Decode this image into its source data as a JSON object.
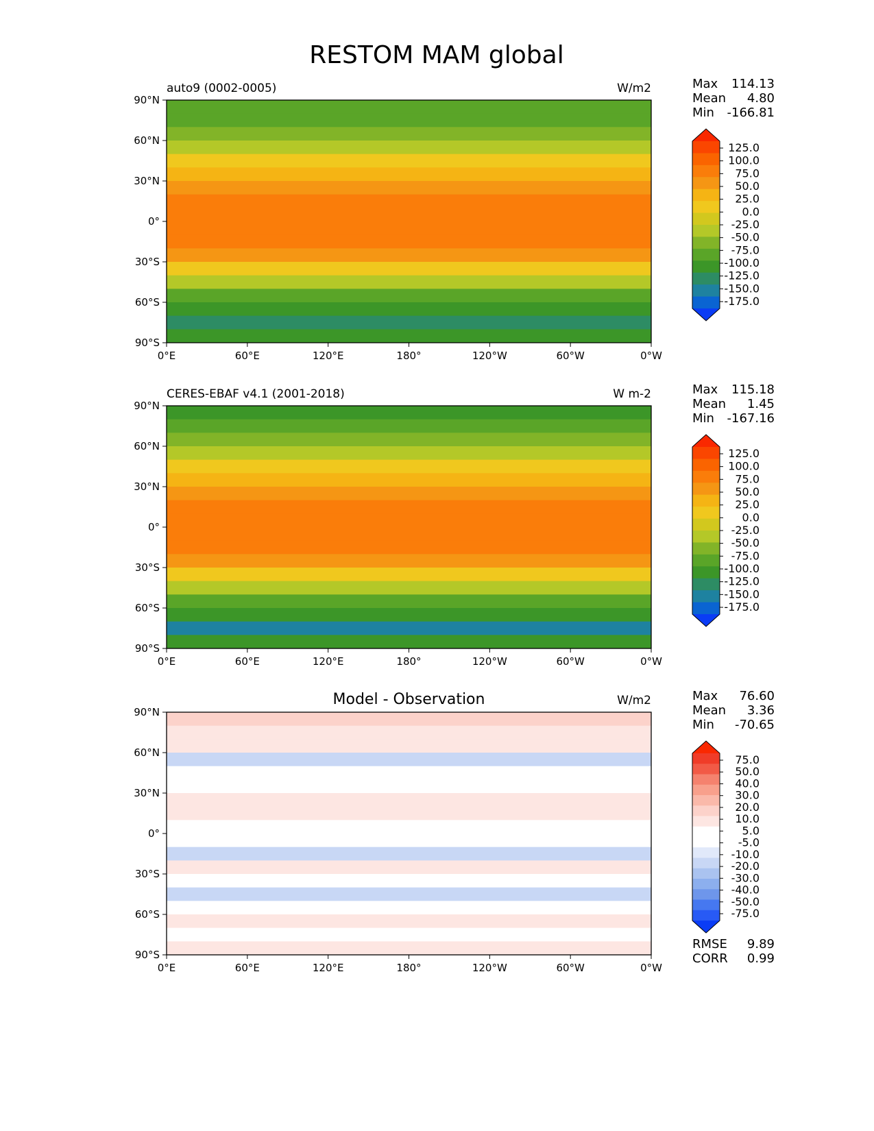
{
  "figure": {
    "title": "RESTOM MAM global"
  },
  "colors": {
    "main_scale": [
      "#0a3cf5",
      "#0a64d2",
      "#1e82a0",
      "#2d8c64",
      "#3c9628",
      "#5aa528",
      "#82b428",
      "#b4c828",
      "#d2c81e",
      "#f0c81e",
      "#f5b414",
      "#f59614",
      "#fa7d0a",
      "#fa6400",
      "#fa4600",
      "#fa2800"
    ],
    "diff_scale": [
      "#0a3cf5",
      "#285af5",
      "#4678f0",
      "#6e96eb",
      "#8cafee",
      "#aac3f0",
      "#c8d7f5",
      "#e1e9fa",
      "#ffffff",
      "#ffffff",
      "#fde6e2",
      "#fcd2ca",
      "#fab9aa",
      "#f8a08c",
      "#f5826e",
      "#f25a46",
      "#f03c28",
      "#fa2800"
    ]
  },
  "chart_data": [
    {
      "type": "heatmap",
      "title": "auto9 (0002-0005)",
      "units": "W/m2",
      "stats": [
        {
          "label": "Max",
          "value": "114.13"
        },
        {
          "label": "Mean",
          "value": "4.80"
        },
        {
          "label": "Min",
          "value": "-166.81"
        }
      ],
      "xticks": [
        "0°E",
        "60°E",
        "120°E",
        "180°",
        "120°W",
        "60°W",
        "0°W"
      ],
      "yticks": [
        "90°N",
        "60°N",
        "30°N",
        "0°",
        "30°S",
        "60°S",
        "90°S"
      ],
      "xlim": [
        0,
        360
      ],
      "ylim": [
        -90,
        90
      ],
      "colorbar_levels": [
        "125.0",
        "100.0",
        "75.0",
        "50.0",
        "25.0",
        "0.0",
        "-25.0",
        "-50.0",
        "-75.0",
        "-100.0",
        "-125.0",
        "-150.0",
        "-175.0"
      ],
      "zonal_bands": [
        {
          "lat": [
            80,
            90
          ],
          "value": -100
        },
        {
          "lat": [
            70,
            80
          ],
          "value": -90
        },
        {
          "lat": [
            60,
            70
          ],
          "value": -65
        },
        {
          "lat": [
            50,
            60
          ],
          "value": -35
        },
        {
          "lat": [
            40,
            50
          ],
          "value": 5
        },
        {
          "lat": [
            30,
            40
          ],
          "value": 35
        },
        {
          "lat": [
            20,
            30
          ],
          "value": 60
        },
        {
          "lat": [
            10,
            20
          ],
          "value": 80
        },
        {
          "lat": [
            -10,
            10
          ],
          "value": 95
        },
        {
          "lat": [
            -20,
            -10
          ],
          "value": 80
        },
        {
          "lat": [
            -30,
            -20
          ],
          "value": 55
        },
        {
          "lat": [
            -40,
            -30
          ],
          "value": 20
        },
        {
          "lat": [
            -50,
            -40
          ],
          "value": -30
        },
        {
          "lat": [
            -60,
            -50
          ],
          "value": -85
        },
        {
          "lat": [
            -70,
            -60
          ],
          "value": -115
        },
        {
          "lat": [
            -80,
            -70
          ],
          "value": -150
        },
        {
          "lat": [
            -90,
            -80
          ],
          "value": -125
        }
      ]
    },
    {
      "type": "heatmap",
      "title": "CERES-EBAF v4.1 (2001-2018)",
      "units": "W m-2",
      "stats": [
        {
          "label": "Max",
          "value": "115.18"
        },
        {
          "label": "Mean",
          "value": "1.45"
        },
        {
          "label": "Min",
          "value": "-167.16"
        }
      ],
      "xticks": [
        "0°E",
        "60°E",
        "120°E",
        "180°",
        "120°W",
        "60°W",
        "0°W"
      ],
      "yticks": [
        "90°N",
        "60°N",
        "30°N",
        "0°",
        "30°S",
        "60°S",
        "90°S"
      ],
      "xlim": [
        0,
        360
      ],
      "ylim": [
        -90,
        90
      ],
      "colorbar_levels": [
        "125.0",
        "100.0",
        "75.0",
        "50.0",
        "25.0",
        "0.0",
        "-25.0",
        "-50.0",
        "-75.0",
        "-100.0",
        "-125.0",
        "-150.0",
        "-175.0"
      ],
      "zonal_bands": [
        {
          "lat": [
            80,
            90
          ],
          "value": -110
        },
        {
          "lat": [
            70,
            80
          ],
          "value": -95
        },
        {
          "lat": [
            60,
            70
          ],
          "value": -70
        },
        {
          "lat": [
            50,
            60
          ],
          "value": -40
        },
        {
          "lat": [
            40,
            50
          ],
          "value": 0
        },
        {
          "lat": [
            30,
            40
          ],
          "value": 30
        },
        {
          "lat": [
            20,
            30
          ],
          "value": 55
        },
        {
          "lat": [
            10,
            20
          ],
          "value": 78
        },
        {
          "lat": [
            -10,
            10
          ],
          "value": 90
        },
        {
          "lat": [
            -20,
            -10
          ],
          "value": 75
        },
        {
          "lat": [
            -30,
            -20
          ],
          "value": 50
        },
        {
          "lat": [
            -40,
            -30
          ],
          "value": 15
        },
        {
          "lat": [
            -50,
            -40
          ],
          "value": -35
        },
        {
          "lat": [
            -60,
            -50
          ],
          "value": -90
        },
        {
          "lat": [
            -70,
            -60
          ],
          "value": -120
        },
        {
          "lat": [
            -80,
            -70
          ],
          "value": -155
        },
        {
          "lat": [
            -90,
            -80
          ],
          "value": -125
        }
      ]
    },
    {
      "type": "heatmap",
      "title": "Model - Observation",
      "units": "W/m2",
      "stats": [
        {
          "label": "Max",
          "value": "76.60"
        },
        {
          "label": "Mean",
          "value": "3.36"
        },
        {
          "label": "Min",
          "value": "-70.65"
        }
      ],
      "footer_stats": [
        {
          "label": "RMSE",
          "value": "9.89"
        },
        {
          "label": "CORR",
          "value": "0.99"
        }
      ],
      "xticks": [
        "0°E",
        "60°E",
        "120°E",
        "180°",
        "120°W",
        "60°W",
        "0°W"
      ],
      "yticks": [
        "90°N",
        "60°N",
        "30°N",
        "0°",
        "30°S",
        "60°S",
        "90°S"
      ],
      "xlim": [
        0,
        360
      ],
      "ylim": [
        -90,
        90
      ],
      "colorbar_levels": [
        "75.0",
        "50.0",
        "40.0",
        "30.0",
        "20.0",
        "10.0",
        "5.0",
        "-5.0",
        "-10.0",
        "-20.0",
        "-30.0",
        "-40.0",
        "-50.0",
        "-75.0"
      ],
      "zonal_bands": [
        {
          "lat": [
            80,
            90
          ],
          "value": 12
        },
        {
          "lat": [
            70,
            80
          ],
          "value": 8
        },
        {
          "lat": [
            60,
            70
          ],
          "value": 6
        },
        {
          "lat": [
            50,
            60
          ],
          "value": -6
        },
        {
          "lat": [
            40,
            50
          ],
          "value": 2
        },
        {
          "lat": [
            30,
            40
          ],
          "value": 4
        },
        {
          "lat": [
            20,
            30
          ],
          "value": 7
        },
        {
          "lat": [
            10,
            20
          ],
          "value": 8
        },
        {
          "lat": [
            -10,
            10
          ],
          "value": 3
        },
        {
          "lat": [
            -20,
            -10
          ],
          "value": -6
        },
        {
          "lat": [
            -30,
            -20
          ],
          "value": 6
        },
        {
          "lat": [
            -40,
            -30
          ],
          "value": 2
        },
        {
          "lat": [
            -50,
            -40
          ],
          "value": -8
        },
        {
          "lat": [
            -60,
            -50
          ],
          "value": 1
        },
        {
          "lat": [
            -70,
            -60
          ],
          "value": 7
        },
        {
          "lat": [
            -80,
            -70
          ],
          "value": 2
        },
        {
          "lat": [
            -90,
            -80
          ],
          "value": 6
        }
      ]
    }
  ]
}
